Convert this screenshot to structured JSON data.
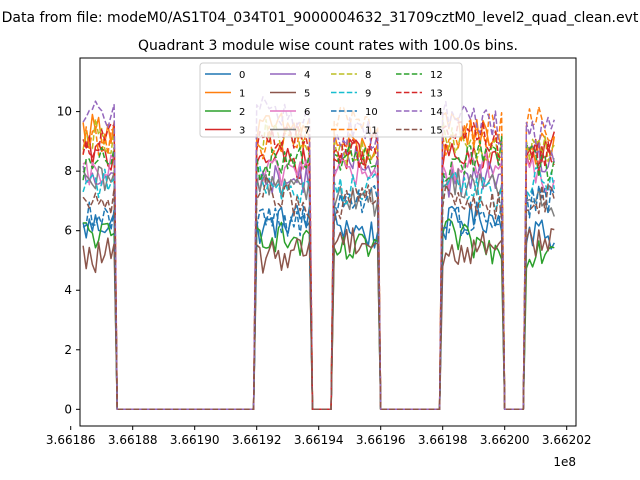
{
  "suptitle": "Data from file: modeM0/AS1T04_034T01_9000004632_31709cztM0_level2_quad_clean.evt",
  "chart_data": {
    "type": "line",
    "title": "Quadrant 3 module wise count rates with 100.0s bins.",
    "xlabel": "",
    "ylabel": "",
    "x_offset_label": "1e8",
    "xlim": [
      366186300,
      366202300
    ],
    "ylim": [
      -0.56,
      11.8
    ],
    "x_ticks": [
      366186000,
      366188000,
      366190000,
      366192000,
      366194000,
      366196000,
      366198000,
      366200000,
      366202000
    ],
    "x_tick_labels": [
      "3.66186",
      "3.66188",
      "3.66190",
      "3.66192",
      "3.66194",
      "3.66196",
      "3.66198",
      "3.66200",
      "3.66202"
    ],
    "y_ticks": [
      0,
      2,
      4,
      6,
      8,
      10
    ],
    "y_tick_labels": [
      "0",
      "2",
      "4",
      "6",
      "8",
      "10"
    ],
    "grid": false,
    "legend_position": "top-center",
    "legend_columns": 4,
    "segments": [
      [
        366186400,
        366187400
      ],
      [
        366192000,
        366193700
      ],
      [
        366194500,
        366195900
      ],
      [
        366198000,
        366199900
      ],
      [
        366200700,
        366201600
      ]
    ],
    "gaps": [
      [
        366187400,
        366187900
      ],
      [
        366189700,
        366192000
      ],
      [
        366193700,
        366194500
      ],
      [
        366195900,
        366198000
      ],
      [
        366199900,
        366200700
      ]
    ],
    "series": [
      {
        "name": "0",
        "color": "#1f77b4",
        "dash": "solid",
        "level": 6.1
      },
      {
        "name": "1",
        "color": "#ff7f0e",
        "dash": "solid",
        "level": 9.1
      },
      {
        "name": "2",
        "color": "#2ca02c",
        "dash": "solid",
        "level": 5.6
      },
      {
        "name": "3",
        "color": "#d62728",
        "dash": "solid",
        "level": 8.6
      },
      {
        "name": "4",
        "color": "#9467bd",
        "dash": "solid",
        "level": 8.0
      },
      {
        "name": "5",
        "color": "#8c564b",
        "dash": "solid",
        "level": 5.4
      },
      {
        "name": "6",
        "color": "#e377c2",
        "dash": "solid",
        "level": 7.9
      },
      {
        "name": "7",
        "color": "#7f7f7f",
        "dash": "solid",
        "level": 7.3
      },
      {
        "name": "8",
        "color": "#bcbd22",
        "dash": "dashed",
        "level": 8.9
      },
      {
        "name": "9",
        "color": "#17becf",
        "dash": "dashed",
        "level": 7.6
      },
      {
        "name": "10",
        "color": "#1f77b4",
        "dash": "dashed",
        "level": 6.7
      },
      {
        "name": "11",
        "color": "#ff7f0e",
        "dash": "dashed",
        "level": 9.3
      },
      {
        "name": "12",
        "color": "#2ca02c",
        "dash": "dashed",
        "level": 8.3
      },
      {
        "name": "13",
        "color": "#d62728",
        "dash": "dashed",
        "level": 8.8
      },
      {
        "name": "14",
        "color": "#9467bd",
        "dash": "dashed",
        "level": 9.6
      },
      {
        "name": "15",
        "color": "#8c564b",
        "dash": "dashed",
        "level": 7.1
      }
    ]
  }
}
